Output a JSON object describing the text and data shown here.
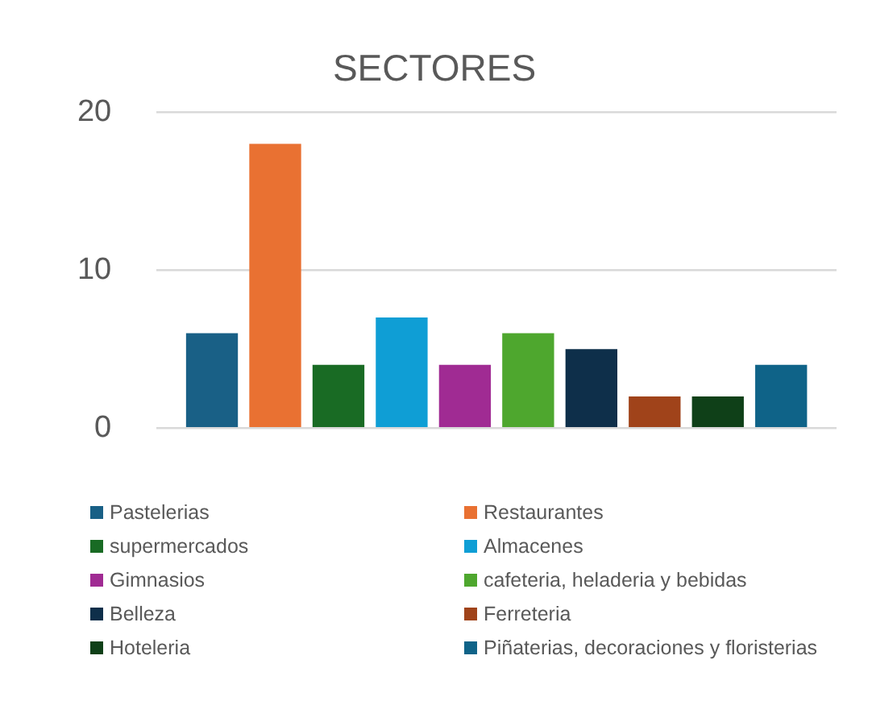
{
  "chart_data": {
    "type": "bar",
    "title": "SECTORES",
    "categories": [
      null
    ],
    "ylim": [
      0,
      20
    ],
    "yticks": [
      0,
      10,
      20
    ],
    "grid": "y",
    "legend": "bottom",
    "series": [
      {
        "name": "Pastelerias",
        "color": "#196086",
        "values": [
          6
        ]
      },
      {
        "name": "Restaurantes",
        "color": "#e97132",
        "values": [
          18
        ]
      },
      {
        "name": "supermercados",
        "color": "#196b24",
        "values": [
          4
        ]
      },
      {
        "name": "Almacenes",
        "color": "#0f9ed5",
        "values": [
          7
        ]
      },
      {
        "name": "Gimnasios",
        "color": "#a02b93",
        "values": [
          4
        ]
      },
      {
        "name": "cafeteria, heladeria y bebidas",
        "color": "#4ea72e",
        "values": [
          6
        ]
      },
      {
        "name": "Belleza",
        "color": "#0e2f4a",
        "values": [
          5
        ]
      },
      {
        "name": "Ferreteria",
        "color": "#a0431a",
        "values": [
          2
        ]
      },
      {
        "name": "Hoteleria",
        "color": "#0f4018",
        "values": [
          2
        ]
      },
      {
        "name": "Piñaterias, decoraciones y floristerias",
        "color": "#0f6388",
        "values": [
          4
        ]
      }
    ]
  }
}
